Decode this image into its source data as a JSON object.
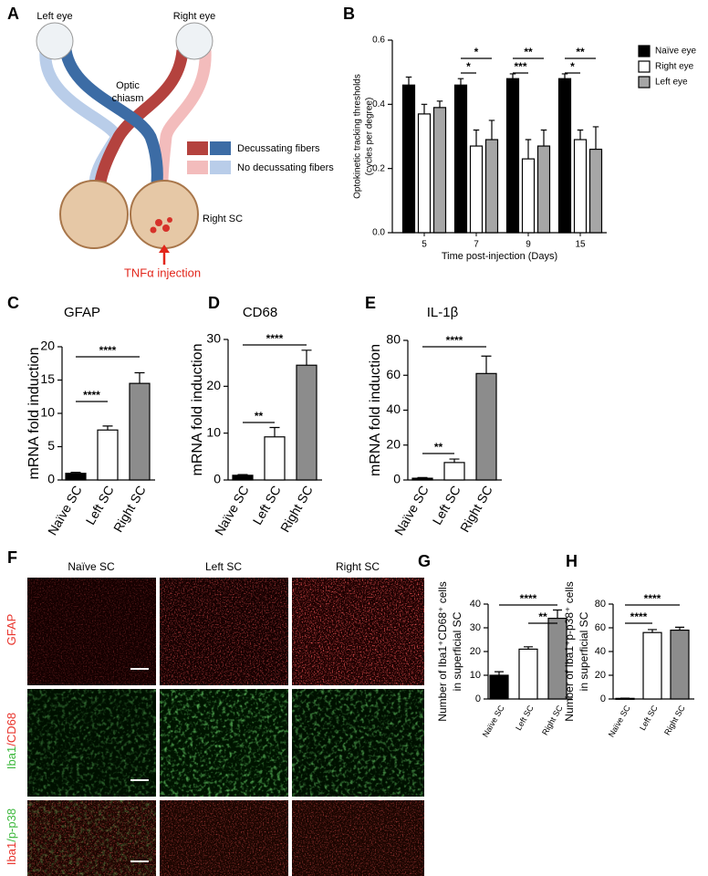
{
  "diagram": {
    "panel": "A",
    "left_eye": "Left eye",
    "right_eye": "Right eye",
    "optic_chiasm": [
      "Optic",
      "chiasm"
    ],
    "legend": [
      "Decussating fibers",
      "No decussating fibers"
    ],
    "right_sc": "Right SC",
    "injection": "TNFα injection"
  },
  "micrographs": {
    "panel": "F",
    "columns": [
      "Naïve SC",
      "Left SC",
      "Right SC"
    ],
    "rows": [
      [
        "GFAP"
      ],
      [
        "Iba1",
        "/CD68"
      ],
      [
        "Iba1",
        "/p-p38"
      ]
    ]
  },
  "chart_data": [
    {
      "type": "grouped_bar",
      "panel": "B",
      "ylabel": [
        "Optokinetic tracking thresholds",
        "(cycles per degree)"
      ],
      "xlabel": "Time post-injection (Days)",
      "categories": [
        "5",
        "7",
        "9",
        "15"
      ],
      "series": [
        {
          "name": "Naïve eye",
          "color": "#000000",
          "values": [
            0.46,
            0.46,
            0.48,
            0.48
          ],
          "errors": [
            0.025,
            0.02,
            0.015,
            0.015
          ]
        },
        {
          "name": "Right eye",
          "color": "#ffffff",
          "values": [
            0.37,
            0.27,
            0.23,
            0.29
          ],
          "errors": [
            0.03,
            0.05,
            0.06,
            0.03
          ]
        },
        {
          "name": "Left eye",
          "color": "#a6a6a6",
          "values": [
            0.39,
            0.29,
            0.27,
            0.26
          ],
          "errors": [
            0.02,
            0.06,
            0.05,
            0.07
          ]
        }
      ],
      "ylim": [
        0,
        0.6
      ],
      "yticks": [
        {
          "value": 0,
          "label": "0.0"
        },
        0.2,
        0.4,
        0.6
      ],
      "annotations": [
        "*",
        "*",
        "**",
        "***",
        "**",
        "*"
      ]
    },
    {
      "type": "bar",
      "panel": "C",
      "title": "GFAP",
      "ylabel": [
        "mRNA fold induction"
      ],
      "categories": [
        "Naïve SC",
        "Left SC",
        "Right SC"
      ],
      "values": [
        1,
        7.5,
        14.5
      ],
      "errors": [
        0.15,
        0.6,
        1.6
      ],
      "colors": [
        "#000000",
        "#ffffff",
        "#8c8c8c"
      ],
      "ylim": [
        0,
        20
      ],
      "yticks": [
        0,
        5,
        10,
        15,
        20
      ],
      "annotations": [
        "****",
        "****"
      ]
    },
    {
      "type": "bar",
      "panel": "D",
      "title": "CD68",
      "ylabel": [
        "mRNA fold induction"
      ],
      "categories": [
        "Naïve SC",
        "Left SC",
        "Right SC"
      ],
      "values": [
        1,
        9.2,
        24.5
      ],
      "errors": [
        0.15,
        2,
        3.2
      ],
      "colors": [
        "#000000",
        "#ffffff",
        "#8c8c8c"
      ],
      "ylim": [
        0,
        30
      ],
      "yticks": [
        0,
        10,
        20,
        30
      ],
      "annotations": [
        "**",
        "****"
      ]
    },
    {
      "type": "bar",
      "panel": "E",
      "title": "IL-1β",
      "ylabel": [
        "mRNA fold induction"
      ],
      "categories": [
        "Naïve SC",
        "Left SC",
        "Right SC"
      ],
      "values": [
        1,
        10,
        61
      ],
      "errors": [
        0.4,
        2,
        10
      ],
      "colors": [
        "#000000",
        "#ffffff",
        "#8c8c8c"
      ],
      "ylim": [
        0,
        80
      ],
      "yticks": [
        0,
        20,
        40,
        60,
        80
      ],
      "annotations": [
        "**",
        "****"
      ]
    },
    {
      "type": "bar",
      "panel": "G",
      "ylabel": [
        "Number of Iba1⁺CD68⁺ cells",
        "in superficial SC"
      ],
      "categories": [
        "Naïve SC",
        "Left SC",
        "Right SC"
      ],
      "values": [
        10,
        21,
        34
      ],
      "errors": [
        1.5,
        1,
        3.5
      ],
      "colors": [
        "#000000",
        "#ffffff",
        "#8c8c8c"
      ],
      "ylim": [
        0,
        40
      ],
      "yticks": [
        0,
        10,
        20,
        30,
        40
      ],
      "annotations": [
        "**",
        "****"
      ]
    },
    {
      "type": "bar",
      "panel": "H",
      "ylabel": [
        "Number of Iba1⁺p-p38⁺ cells",
        "in superficial SC"
      ],
      "categories": [
        "Naïve SC",
        "Left SC",
        "Right SC"
      ],
      "values": [
        0.5,
        56,
        58
      ],
      "errors": [
        0.2,
        2.5,
        2.5
      ],
      "colors": [
        "#000000",
        "#ffffff",
        "#8c8c8c"
      ],
      "ylim": [
        0,
        80
      ],
      "yticks": [
        0,
        20,
        40,
        60,
        80
      ],
      "annotations": [
        "****",
        "****"
      ]
    }
  ]
}
